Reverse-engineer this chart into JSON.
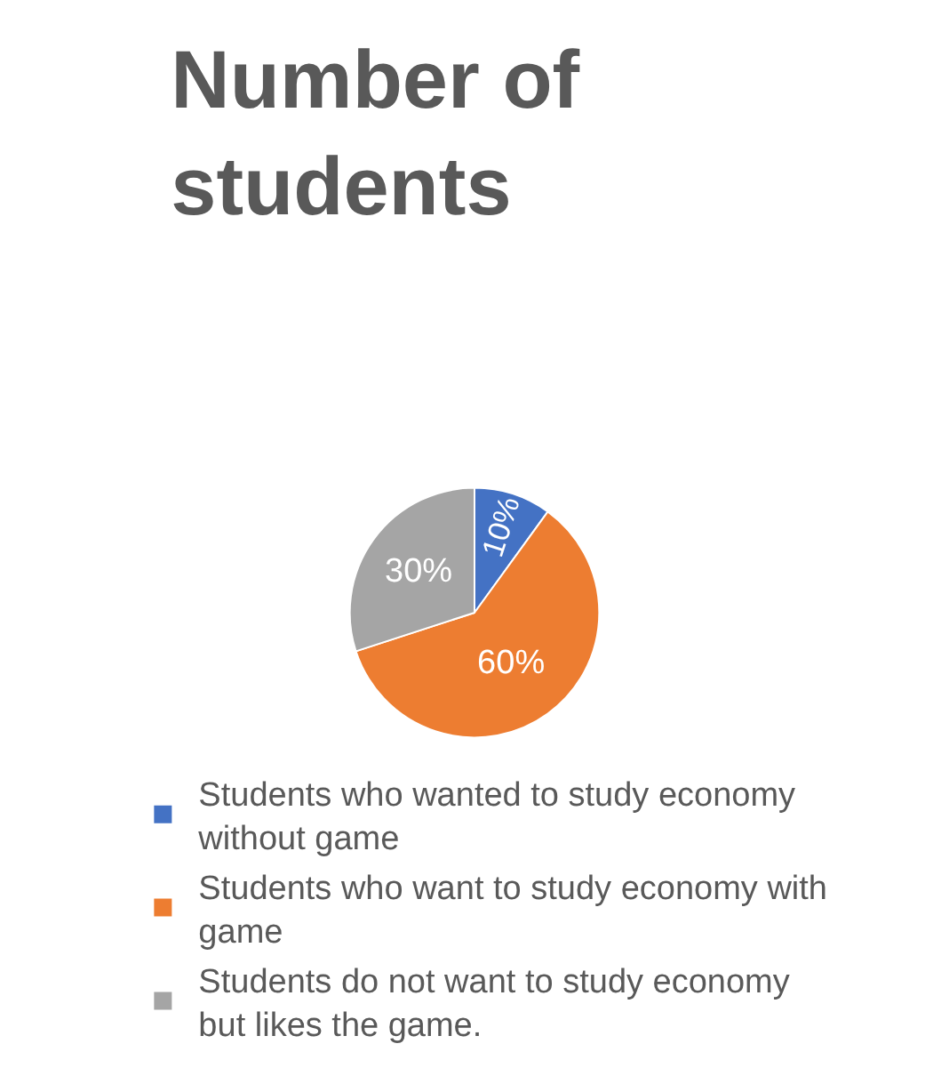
{
  "chart_data": {
    "type": "pie",
    "title": "Number of students",
    "categories": [
      "Students who wanted to study economy without game",
      "Students who want to study economy with game",
      "Students do not want to study economy but likes the game."
    ],
    "values": [
      10,
      60,
      30
    ],
    "colors": [
      "#4472c4",
      "#ed7d31",
      "#a5a5a5"
    ],
    "value_labels": [
      "10%",
      "60%",
      "30%"
    ],
    "legend": "bottom"
  }
}
